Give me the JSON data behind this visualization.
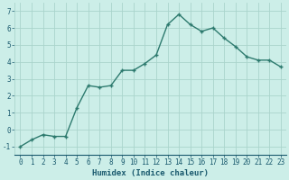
{
  "xlabel": "Humidex (Indice chaleur)",
  "ylabel": "",
  "x_values": [
    0,
    1,
    2,
    3,
    4,
    5,
    6,
    7,
    8,
    9,
    10,
    11,
    12,
    13,
    14,
    15,
    16,
    17,
    18,
    19,
    20,
    21,
    22,
    23
  ],
  "y_values": [
    -1.0,
    -0.6,
    -0.3,
    -0.4,
    -0.4,
    1.3,
    2.6,
    2.5,
    2.6,
    3.5,
    3.5,
    3.9,
    4.4,
    6.2,
    6.8,
    6.2,
    5.8,
    6.0,
    5.4,
    4.9,
    4.3,
    4.1,
    4.1,
    3.7
  ],
  "line_color": "#2d7a6e",
  "marker": "+",
  "marker_size": 3.5,
  "bg_color": "#cceee8",
  "grid_color": "#aad4cc",
  "tick_label_color": "#1a5a6e",
  "ylim": [
    -1.5,
    7.5
  ],
  "xlim": [
    -0.5,
    23.5
  ],
  "yticks": [
    -1,
    0,
    1,
    2,
    3,
    4,
    5,
    6,
    7
  ],
  "xticks": [
    0,
    1,
    2,
    3,
    4,
    5,
    6,
    7,
    8,
    9,
    10,
    11,
    12,
    13,
    14,
    15,
    16,
    17,
    18,
    19,
    20,
    21,
    22,
    23
  ],
  "tick_fontsize": 5.5,
  "xlabel_fontsize": 6.5,
  "line_width": 1.0,
  "marker_edge_width": 1.0
}
